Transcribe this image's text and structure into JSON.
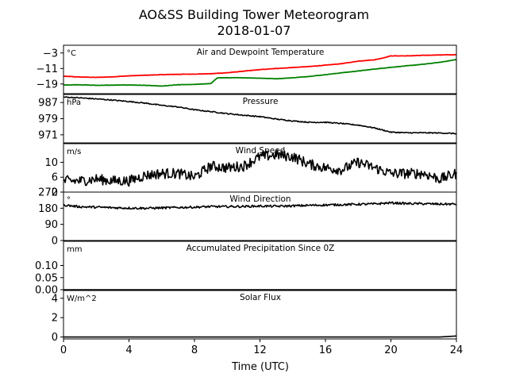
{
  "title": "AO&SS Building Tower Meteorogram",
  "subtitle": "2018-01-07",
  "colors": {
    "air_temp": "#ff0000",
    "dewpoint": "#008000",
    "trace": "#000000"
  },
  "chart_data": [
    {
      "type": "line",
      "title": "Air and Dewpoint Temperature",
      "unit": "°C",
      "x_range": [
        0,
        24
      ],
      "ylim": [
        -24,
        1
      ],
      "yticks": [
        -3,
        -11,
        -19
      ],
      "ytick_labels": [
        "−3",
        "−11",
        "−19"
      ],
      "series": [
        {
          "x": [
            0,
            1,
            2,
            3,
            4,
            5,
            6,
            7,
            8,
            9,
            10,
            11,
            12,
            13,
            14,
            15,
            16,
            17,
            18,
            19,
            19.5,
            20,
            21,
            22,
            23,
            24
          ],
          "y": [
            -15,
            -15.4,
            -15.6,
            -15.3,
            -14.8,
            -14.5,
            -14.2,
            -14,
            -13.9,
            -13.7,
            -13.2,
            -12.4,
            -11.6,
            -11,
            -10.5,
            -10,
            -9.3,
            -8.5,
            -7.2,
            -6.5,
            -5.6,
            -4.5,
            -4.5,
            -4.2,
            -4,
            -3.9
          ]
        },
        {
          "x": [
            0,
            1,
            2,
            3,
            4,
            5,
            6,
            7,
            8,
            9,
            9.4,
            10,
            11,
            12,
            13,
            14,
            15,
            16,
            17,
            18,
            19,
            20,
            21,
            22,
            23,
            24
          ],
          "y": [
            -19.5,
            -19.4,
            -19.7,
            -19.6,
            -19.5,
            -19.7,
            -20.1,
            -19.4,
            -19.2,
            -18.8,
            -15.8,
            -15.8,
            -15.8,
            -16,
            -16.3,
            -15.8,
            -15.1,
            -14.2,
            -13.2,
            -12.3,
            -11.3,
            -10.4,
            -9.6,
            -8.8,
            -7.8,
            -6.4
          ]
        }
      ]
    },
    {
      "type": "line",
      "title": "Pressure",
      "unit": "hPa",
      "x_range": [
        0,
        24
      ],
      "ylim": [
        967,
        991
      ],
      "yticks": [
        987,
        979,
        971
      ],
      "ytick_labels": [
        "987",
        "979",
        "971"
      ],
      "series": [
        {
          "x": [
            0,
            1,
            2,
            3,
            4,
            5,
            6,
            7,
            8,
            9,
            10,
            11,
            12,
            13,
            14,
            15,
            16,
            17,
            18,
            19,
            20,
            21,
            22,
            23,
            24
          ],
          "y": [
            989.7,
            989.3,
            988.8,
            988.2,
            987.5,
            986.7,
            985.6,
            984.8,
            983.4,
            982.5,
            981.5,
            980.7,
            980,
            978.8,
            977.9,
            977.2,
            977.2,
            976.6,
            975.8,
            974.4,
            972.3,
            972,
            972,
            971.9,
            971.6
          ]
        }
      ]
    },
    {
      "type": "line",
      "title": "Wind Speed",
      "unit": "m/s",
      "x_range": [
        0,
        24
      ],
      "ylim": [
        2,
        15
      ],
      "yticks": [
        10,
        6,
        2
      ],
      "ytick_labels": [
        "10",
        "6",
        "2"
      ],
      "series": [
        {
          "x": [
            0,
            1,
            2,
            3,
            4,
            5,
            6,
            7,
            8,
            9,
            10,
            11,
            12,
            13,
            14,
            15,
            16,
            17,
            18,
            19,
            20,
            21,
            22,
            23,
            24
          ],
          "y": [
            5,
            5,
            5.5,
            5,
            5,
            6.5,
            7,
            7,
            6,
            9,
            8.5,
            9,
            11.5,
            12,
            11.5,
            9.5,
            8.5,
            8,
            10,
            8.5,
            7,
            7,
            7,
            5.5,
            7
          ]
        }
      ]
    },
    {
      "type": "line",
      "title": "Wind Direction",
      "unit": "°",
      "x_range": [
        0,
        24
      ],
      "ylim": [
        0,
        270
      ],
      "yticks": [
        270,
        180,
        90,
        0
      ],
      "ytick_labels": [
        "270",
        "180",
        "90",
        "0"
      ],
      "series": [
        {
          "x": [
            0,
            1,
            2,
            3,
            4,
            5,
            6,
            7,
            8,
            9,
            10,
            11,
            12,
            13,
            14,
            15,
            16,
            17,
            18,
            19,
            20,
            21,
            22,
            23,
            24
          ],
          "y": [
            198,
            188,
            186,
            183,
            181,
            180,
            182,
            184,
            186,
            189,
            189,
            190,
            192,
            191,
            193,
            196,
            198,
            200,
            202,
            204,
            210,
            206,
            205,
            203,
            203
          ]
        }
      ]
    },
    {
      "type": "line",
      "title": "Accumulated Precipitation Since 0Z",
      "unit": "mm",
      "x_range": [
        0,
        24
      ],
      "ylim": [
        0,
        0.2
      ],
      "yticks": [
        0.1,
        0.05,
        0.0
      ],
      "ytick_labels": [
        "0.10",
        "0.05",
        "0.00"
      ],
      "series": [
        {
          "x": [
            0,
            24
          ],
          "y": [
            0,
            0
          ]
        }
      ]
    },
    {
      "type": "line",
      "title": "Solar Flux",
      "unit": "W/m^2",
      "x_range": [
        0,
        24
      ],
      "ylim": [
        -0.2,
        4.8
      ],
      "yticks": [
        4,
        2,
        0
      ],
      "ytick_labels": [
        "4",
        "2",
        "0"
      ],
      "series": [
        {
          "x": [
            0,
            23,
            23.5,
            24
          ],
          "y": [
            0,
            0,
            0.05,
            0.1
          ]
        }
      ]
    }
  ],
  "xaxis": {
    "label": "Time (UTC)",
    "ticks": [
      0,
      4,
      8,
      12,
      16,
      20,
      24
    ],
    "tick_labels": [
      "0",
      "4",
      "8",
      "12",
      "16",
      "20",
      "24"
    ]
  }
}
